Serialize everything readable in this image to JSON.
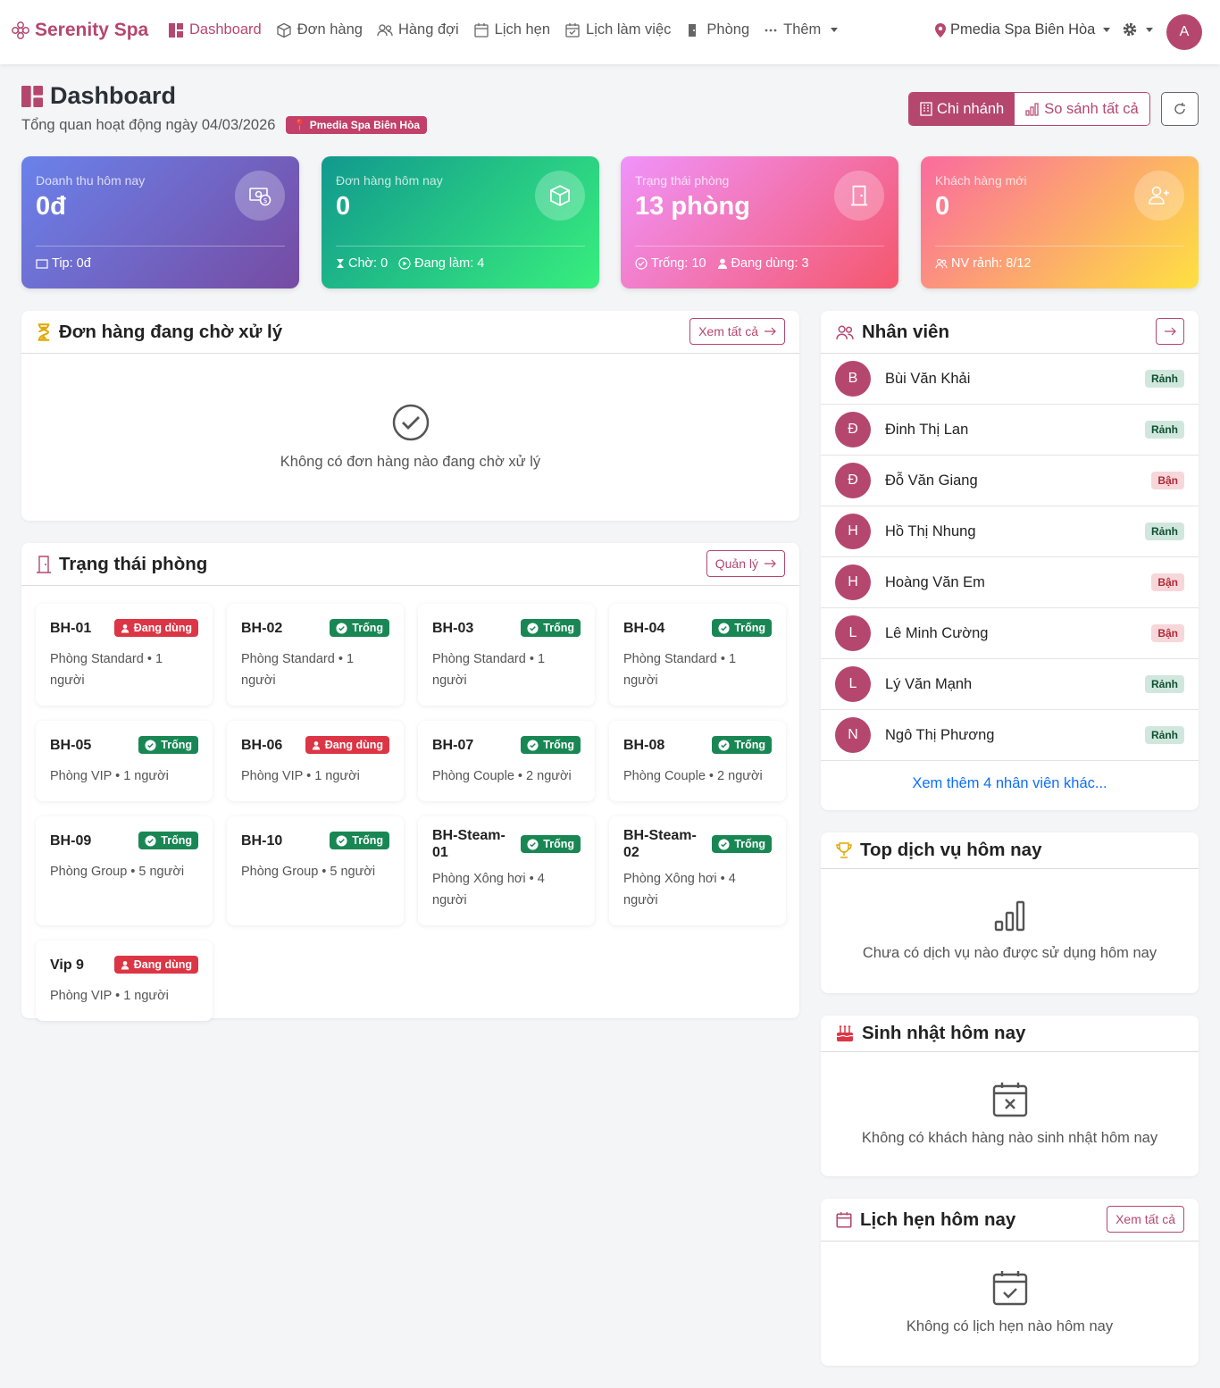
{
  "nav": {
    "brand": "Serenity Spa",
    "items": [
      "Dashboard",
      "Đơn hàng",
      "Hàng đợi",
      "Lịch hẹn",
      "Lịch làm việc",
      "Phòng",
      "Thêm"
    ],
    "branch": "Pmedia Spa Biên Hòa",
    "avatar": "A"
  },
  "header": {
    "title": "Dashboard",
    "subtitle": "Tổng quan hoạt động ngày 04/03/2026",
    "badge": "Pmedia Spa Biên Hòa",
    "buttons": [
      "Chi nhánh",
      "So sánh tất cả"
    ]
  },
  "stats": [
    {
      "label": "Doanh thu hôm nay",
      "value": "0đ",
      "footer": [
        "Tip: 0đ"
      ]
    },
    {
      "label": "Đơn hàng hôm nay",
      "value": "0",
      "footer": [
        "Chờ: 0",
        "Đang làm: 4"
      ]
    },
    {
      "label": "Trạng thái phòng",
      "value": "13 phòng",
      "footer": [
        "Trống: 10",
        "Đang dùng: 3"
      ]
    },
    {
      "label": "Khách hàng mới",
      "value": "0",
      "footer": [
        "NV rảnh: 8/12"
      ]
    }
  ],
  "pending": {
    "title": "Đơn hàng đang chờ xử lý",
    "button": "Xem tất cả",
    "empty": "Không có đơn hàng nào đang chờ xử lý"
  },
  "rooms": {
    "title": "Trạng thái phòng",
    "button": "Quản lý",
    "items": [
      {
        "code": "BH-01",
        "status": "Đang dùng",
        "color": "#dc3545",
        "desc": "Phòng Standard • 1 người"
      },
      {
        "code": "BH-02",
        "status": "Trống",
        "color": "#198754",
        "desc": "Phòng Standard • 1 người"
      },
      {
        "code": "BH-03",
        "status": "Trống",
        "color": "#198754",
        "desc": "Phòng Standard • 1 người"
      },
      {
        "code": "BH-04",
        "status": "Trống",
        "color": "#198754",
        "desc": "Phòng Standard • 1 người"
      },
      {
        "code": "BH-05",
        "status": "Trống",
        "color": "#198754",
        "desc": "Phòng VIP • 1 người"
      },
      {
        "code": "BH-06",
        "status": "Đang dùng",
        "color": "#dc3545",
        "desc": "Phòng VIP • 1 người"
      },
      {
        "code": "BH-07",
        "status": "Trống",
        "color": "#198754",
        "desc": "Phòng Couple • 2 người"
      },
      {
        "code": "BH-08",
        "status": "Trống",
        "color": "#198754",
        "desc": "Phòng Couple • 2 người"
      },
      {
        "code": "BH-09",
        "status": "Trống",
        "color": "#198754",
        "desc": "Phòng Group • 5 người"
      },
      {
        "code": "BH-10",
        "status": "Trống",
        "color": "#198754",
        "desc": "Phòng Group • 5 người"
      },
      {
        "code": "BH-Steam-01",
        "status": "Trống",
        "color": "#198754",
        "desc": "Phòng Xông hơi • 4 người"
      },
      {
        "code": "BH-Steam-02",
        "status": "Trống",
        "color": "#198754",
        "desc": "Phòng Xông hơi • 4 người"
      },
      {
        "code": "Vip 9",
        "status": "Đang dùng",
        "color": "#dc3545",
        "desc": "Phòng VIP • 1 người"
      }
    ]
  },
  "staff": {
    "title": "Nhân viên",
    "items": [
      {
        "initial": "B",
        "name": "Bùi Văn Khải",
        "status": "Rảnh",
        "color": "#0f5132",
        "background": "#d1e7dd"
      },
      {
        "initial": "Đ",
        "name": "Đinh Thị Lan",
        "status": "Rảnh",
        "color": "#0f5132",
        "background": "#d1e7dd"
      },
      {
        "initial": "Đ",
        "name": "Đỗ Văn Giang",
        "status": "Bận",
        "color": "#b02a37",
        "background": "#f8d7da"
      },
      {
        "initial": "H",
        "name": "Hồ Thị Nhung",
        "status": "Rảnh",
        "color": "#0f5132",
        "background": "#d1e7dd"
      },
      {
        "initial": "H",
        "name": "Hoàng Văn Em",
        "status": "Bận",
        "color": "#b02a37",
        "background": "#f8d7da"
      },
      {
        "initial": "L",
        "name": "Lê Minh Cường",
        "status": "Bận",
        "color": "#b02a37",
        "background": "#f8d7da"
      },
      {
        "initial": "L",
        "name": "Lý Văn Mạnh",
        "status": "Rảnh",
        "color": "#0f5132",
        "background": "#d1e7dd"
      },
      {
        "initial": "N",
        "name": "Ngô Thị Phương",
        "status": "Rảnh",
        "color": "#0f5132",
        "background": "#d1e7dd"
      }
    ],
    "more": "Xem thêm 4 nhân viên khác..."
  },
  "top_services": {
    "title": "Top dịch vụ hôm nay",
    "empty": "Chưa có dịch vụ nào được sử dụng hôm nay"
  },
  "birthdays": {
    "title": "Sinh nhật hôm nay",
    "empty": "Không có khách hàng nào sinh nhật hôm nay"
  },
  "appointments": {
    "title": "Lịch hẹn hôm nay",
    "button": "Xem tất cả",
    "empty": "Không có lịch hẹn nào hôm nay"
  }
}
